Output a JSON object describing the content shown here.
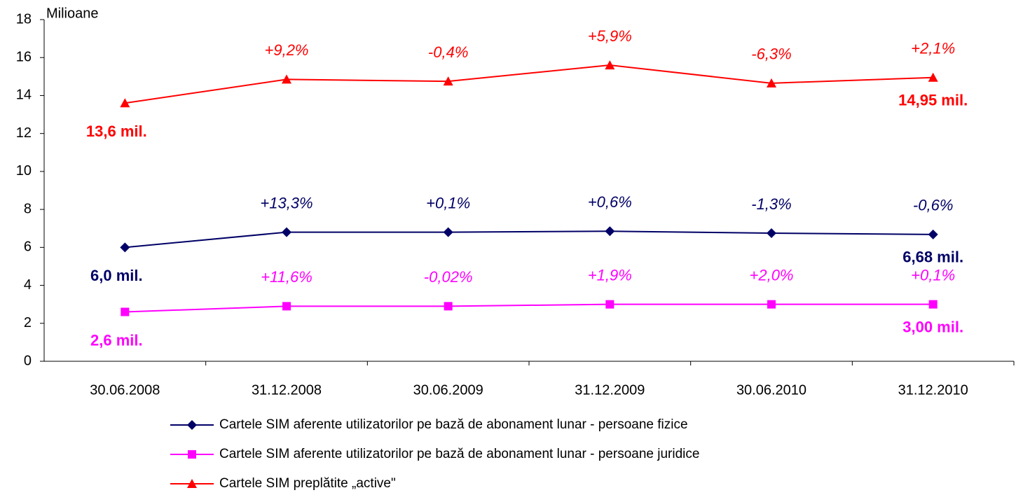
{
  "chart_data": {
    "type": "line",
    "y_axis_label": "Milioane",
    "categories": [
      "30.06.2008",
      "31.12.2008",
      "30.06.2009",
      "31.12.2009",
      "30.06.2010",
      "31.12.2010"
    ],
    "series": [
      {
        "name": "Cartele SIM aferente utilizatorilor pe bază de abonament lunar - persoane fizice",
        "color": "#000066",
        "marker": "diamond",
        "values": [
          6.0,
          6.8,
          6.8,
          6.85,
          6.75,
          6.68
        ],
        "value_labels": [
          "6,0 mil.",
          null,
          null,
          null,
          null,
          "6,68 mil."
        ],
        "change_labels": [
          null,
          "+13,3%",
          "+0,1%",
          "+0,6%",
          "-1,3%",
          "-0,6%"
        ]
      },
      {
        "name": "Cartele SIM aferente utilizatorilor pe bază de abonament lunar - persoane juridice",
        "color": "#ff00ff",
        "marker": "square",
        "values": [
          2.6,
          2.9,
          2.9,
          3.0,
          3.0,
          3.0
        ],
        "value_labels": [
          "2,6 mil.",
          null,
          null,
          null,
          null,
          "3,00 mil."
        ],
        "change_labels": [
          null,
          "+11,6%",
          "-0,02%",
          "+1,9%",
          "+2,0%",
          "+0,1%"
        ]
      },
      {
        "name": "Cartele SIM preplătite „active\"",
        "color": "#ff0000",
        "marker": "triangle",
        "values": [
          13.6,
          14.85,
          14.75,
          15.6,
          14.65,
          14.95
        ],
        "value_labels": [
          "13,6 mil.",
          null,
          null,
          null,
          null,
          "14,95 mil."
        ],
        "change_labels": [
          null,
          "+9,2%",
          "-0,4%",
          "+5,9%",
          "-6,3%",
          "+2,1%"
        ]
      }
    ],
    "ylim": [
      0,
      18
    ],
    "yticks": [
      0,
      2,
      4,
      6,
      8,
      10,
      12,
      14,
      16,
      18
    ],
    "grid": false,
    "legend": "bottom"
  }
}
